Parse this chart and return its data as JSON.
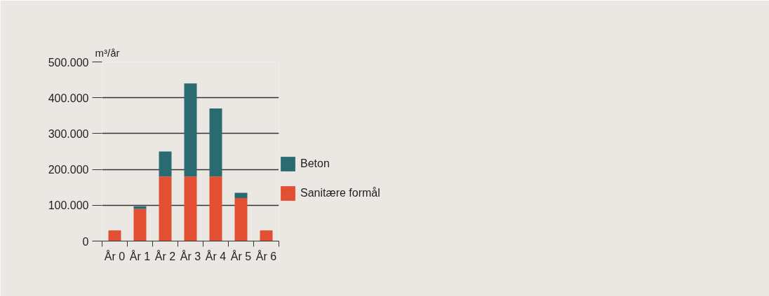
{
  "chart_data": {
    "type": "bar",
    "stacked": true,
    "ylabel": "m³/år",
    "categories": [
      "År 0",
      "År 1",
      "År 2",
      "År 3",
      "År 4",
      "År 5",
      "År 6"
    ],
    "series": [
      {
        "name": "Sanitære formål",
        "color": "#e34f33",
        "values": [
          30000,
          90000,
          180000,
          180000,
          180000,
          120000,
          30000
        ]
      },
      {
        "name": "Beton",
        "color": "#2a6b72",
        "values": [
          0,
          7000,
          70000,
          260000,
          190000,
          15000,
          0
        ]
      }
    ],
    "ylim": [
      0,
      500000
    ],
    "yticks": [
      {
        "value": 0,
        "label": "0"
      },
      {
        "value": 100000,
        "label": "100.000"
      },
      {
        "value": 200000,
        "label": "200.000"
      },
      {
        "value": 300000,
        "label": "300.000"
      },
      {
        "value": 400000,
        "label": "400.000"
      },
      {
        "value": 500000,
        "label": "500.000"
      }
    ],
    "grid": "y",
    "legend": "right"
  }
}
